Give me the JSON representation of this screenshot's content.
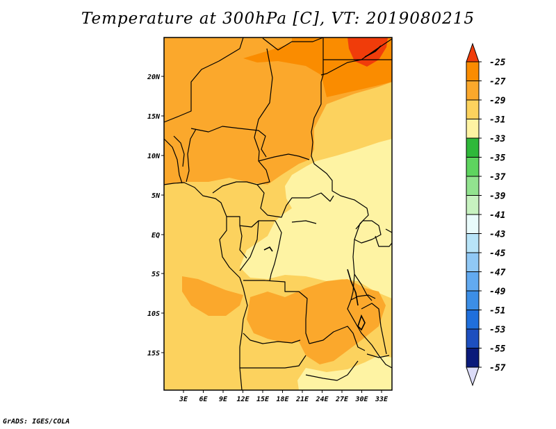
{
  "title": "Temperature at 300hPa [C], VT: 2019080215",
  "credit": "GrADS: IGES/COLA",
  "map": {
    "lat_labels": [
      "20N",
      "15N",
      "10N",
      "5N",
      "EQ",
      "5S",
      "10S",
      "15S"
    ],
    "lon_labels": [
      "3E",
      "6E",
      "9E",
      "12E",
      "15E",
      "18E",
      "21E",
      "24E",
      "27E",
      "30E",
      "33E"
    ]
  },
  "colorbar": {
    "labels": [
      "-25",
      "-27",
      "-29",
      "-31",
      "-33",
      "-35",
      "-37",
      "-39",
      "-41",
      "-43",
      "-45",
      "-47",
      "-49",
      "-51",
      "-53",
      "-55",
      "-57"
    ],
    "colors": [
      "#f03c0a",
      "#fa8c00",
      "#fba82c",
      "#fcd25e",
      "#fef3a3",
      "#2fb83a",
      "#5ed45f",
      "#92e38f",
      "#c7f2c0",
      "#e9fbfb",
      "#b8e4f8",
      "#90c8f5",
      "#62aaf0",
      "#3c8ee6",
      "#1f6fdc",
      "#1d4fbf",
      "#0a1a7a",
      "#dcdcf8"
    ]
  }
}
